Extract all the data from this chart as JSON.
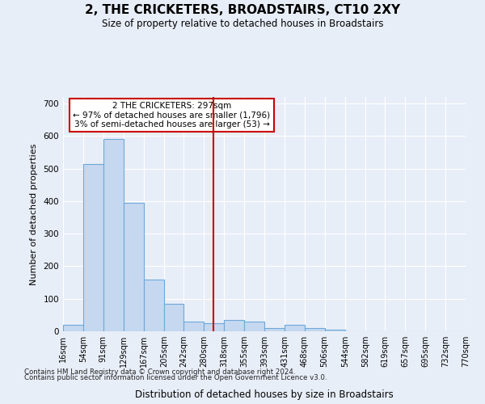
{
  "title": "2, THE CRICKETERS, BROADSTAIRS, CT10 2XY",
  "subtitle": "Size of property relative to detached houses in Broadstairs",
  "xlabel": "Distribution of detached houses by size in Broadstairs",
  "ylabel": "Number of detached properties",
  "footnote1": "Contains HM Land Registry data © Crown copyright and database right 2024.",
  "footnote2": "Contains public sector information licensed under the Open Government Licence v3.0.",
  "annotation_line1": "2 THE CRICKETERS: 297sqm",
  "annotation_line2": "← 97% of detached houses are smaller (1,796)",
  "annotation_line3": "3% of semi-detached houses are larger (53) →",
  "property_value": 297,
  "bin_edges": [
    16,
    54,
    91,
    129,
    167,
    205,
    242,
    280,
    318,
    355,
    393,
    431,
    468,
    506,
    544,
    582,
    619,
    657,
    695,
    732,
    770
  ],
  "bar_heights": [
    20,
    515,
    590,
    395,
    160,
    85,
    30,
    25,
    35,
    30,
    10,
    20,
    10,
    5,
    0,
    0,
    0,
    0,
    0,
    0
  ],
  "bar_color": "#c5d8f0",
  "bar_edge_color": "#6ea8d8",
  "vline_color": "#cc0000",
  "vline_x": 297,
  "annotation_box_color": "#cc0000",
  "background_color": "#e8eef8",
  "grid_color": "#d0d8e8",
  "ylim": [
    0,
    720
  ],
  "yticks": [
    0,
    100,
    200,
    300,
    400,
    500,
    600,
    700
  ]
}
